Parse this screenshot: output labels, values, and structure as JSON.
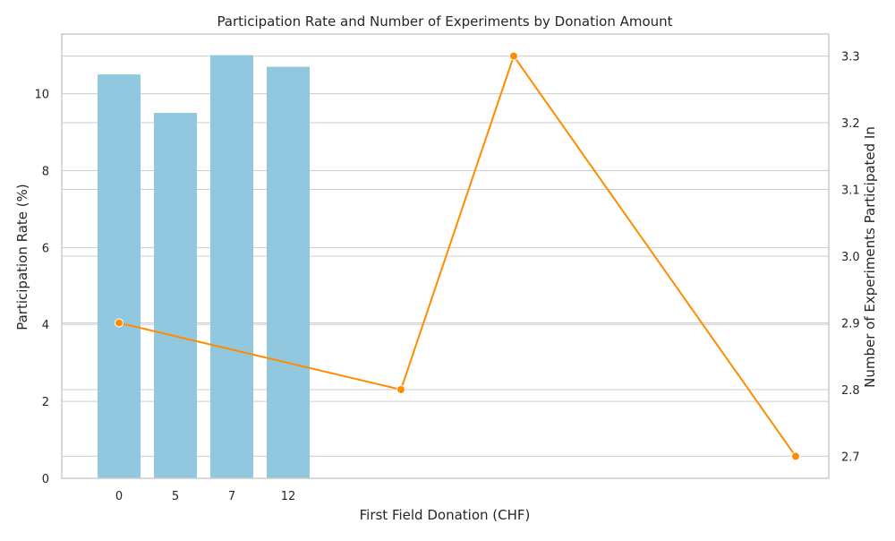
{
  "chart_data": {
    "type": "bar",
    "title": "Participation Rate and Number of Experiments by Donation Amount",
    "xlabel": "First Field Donation (CHF)",
    "ylabel": "Participation Rate (%)",
    "y2label": "Number of Experiments Participated In",
    "categories": [
      "0",
      "5",
      "7",
      "12"
    ],
    "series": [
      {
        "axis": "left",
        "type": "bar",
        "values": [
          10.5,
          9.5,
          11.0,
          10.7
        ]
      },
      {
        "axis": "right",
        "type": "line",
        "x": [
          0,
          5,
          7,
          12
        ],
        "values": [
          2.9,
          2.8,
          3.3,
          2.7
        ]
      }
    ],
    "ylim": [
      0,
      11.55
    ],
    "y2lim": [
      2.667,
      3.333
    ],
    "yticks": [
      0,
      2,
      4,
      6,
      8,
      10
    ],
    "y2ticks": [
      2.7,
      2.8,
      2.9,
      3.0,
      3.1,
      3.2,
      3.3
    ],
    "grid": true,
    "colors": {
      "bars": "#92c8df",
      "line": "#ff8c00",
      "grid": "#cccccc",
      "spine": "#cccccc"
    }
  }
}
